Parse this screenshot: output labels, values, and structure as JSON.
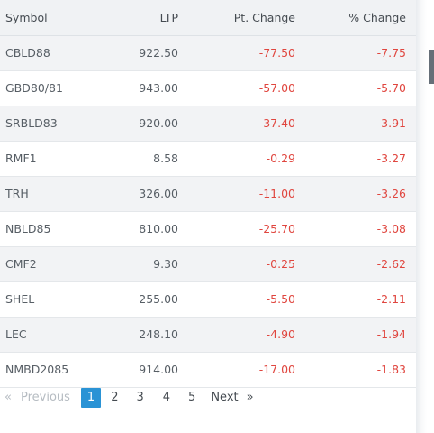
{
  "table": {
    "headers": {
      "symbol": "Symbol",
      "ltp": "LTP",
      "pt_change": "Pt. Change",
      "pct_change": "% Change"
    },
    "rows": [
      {
        "symbol": "CBLD88",
        "ltp": "922.50",
        "pt_change": "-77.50",
        "pct_change": "-7.75"
      },
      {
        "symbol": "GBD80/81",
        "ltp": "943.00",
        "pt_change": "-57.00",
        "pct_change": "-5.70"
      },
      {
        "symbol": "SRBLD83",
        "ltp": "920.00",
        "pt_change": "-37.40",
        "pct_change": "-3.91"
      },
      {
        "symbol": "RMF1",
        "ltp": "8.58",
        "pt_change": "-0.29",
        "pct_change": "-3.27"
      },
      {
        "symbol": "TRH",
        "ltp": "326.00",
        "pt_change": "-11.00",
        "pct_change": "-3.26"
      },
      {
        "symbol": "NBLD85",
        "ltp": "810.00",
        "pt_change": "-25.70",
        "pct_change": "-3.08"
      },
      {
        "symbol": "CMF2",
        "ltp": "9.30",
        "pt_change": "-0.25",
        "pct_change": "-2.62"
      },
      {
        "symbol": "SHEL",
        "ltp": "255.00",
        "pt_change": "-5.50",
        "pct_change": "-2.11"
      },
      {
        "symbol": "LEC",
        "ltp": "248.10",
        "pt_change": "-4.90",
        "pct_change": "-1.94"
      },
      {
        "symbol": "NMBD2085",
        "ltp": "914.00",
        "pt_change": "-17.00",
        "pct_change": "-1.83"
      }
    ]
  },
  "pagination": {
    "first_glyph": "«",
    "previous_label": "Previous",
    "pages": [
      "1",
      "2",
      "3",
      "4",
      "5"
    ],
    "current_page": "1",
    "next_label": "Next",
    "last_glyph": "»"
  },
  "colors": {
    "negative": "#e0463f",
    "active_page": "#2a93d5",
    "header_bg": "#f0f2f4",
    "stripe_bg": "#f2f3f5"
  }
}
